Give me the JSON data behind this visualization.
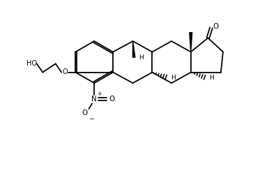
{
  "background": "#ffffff",
  "line_color": "#000000",
  "lw": 1.3,
  "figsize": [
    3.96,
    2.48
  ],
  "dpi": 100,
  "xlim": [
    0,
    3.96
  ],
  "ylim": [
    0,
    2.48
  ]
}
